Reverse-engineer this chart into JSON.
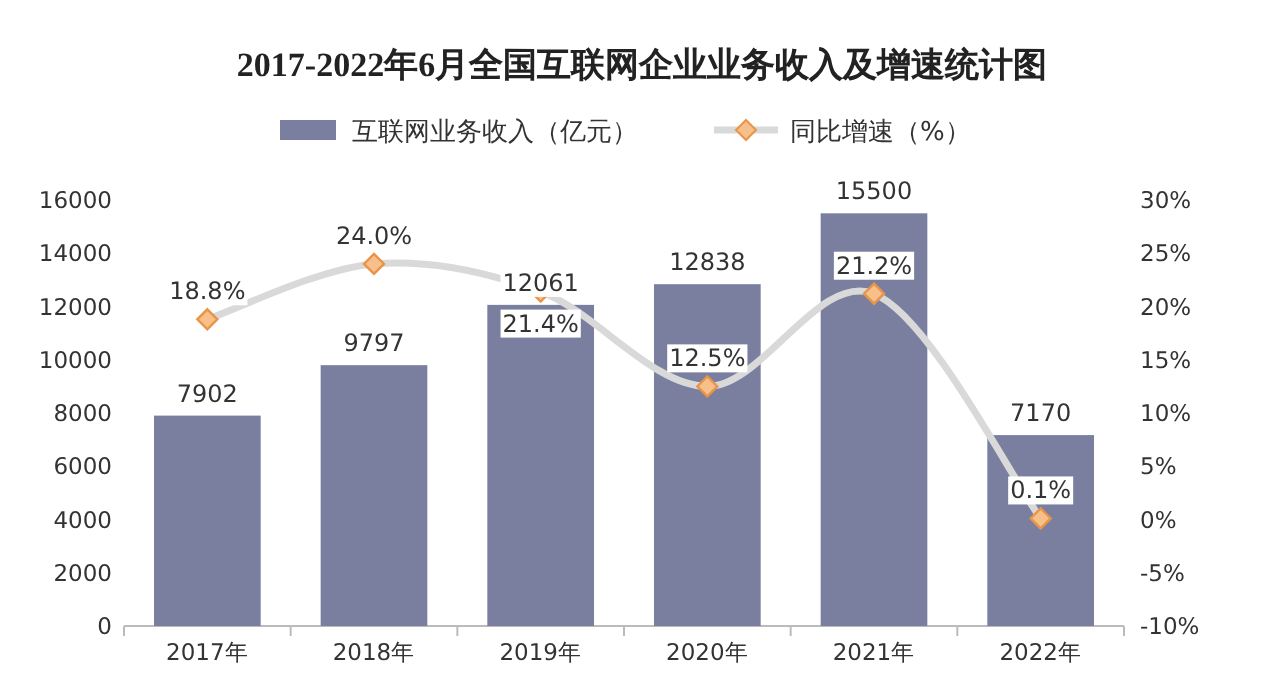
{
  "chart_data": {
    "type": "bar",
    "title": "2017-2022年6月全国互联网企业业务收入及增速统计图",
    "categories": [
      "2017年",
      "2018年",
      "2019年",
      "2020年",
      "2021年",
      "2022年"
    ],
    "series": [
      {
        "name": "互联网业务收入（亿元）",
        "color": "#7a7f9f",
        "values": [
          7902,
          9797,
          12061,
          12838,
          15500,
          7170
        ]
      },
      {
        "name": "同比增速（%）",
        "type": "line",
        "axis": "y2",
        "color": "#d9d9d9",
        "marker": "diamond",
        "values": [
          18.8,
          24.0,
          21.4,
          12.5,
          21.2,
          0.1
        ],
        "value_labels": [
          "18.8%",
          "24.0%",
          "21.4%",
          "12.5%",
          "21.2%",
          "0.1%"
        ]
      }
    ],
    "data_labels": true,
    "ylim": [
      0,
      16000
    ],
    "yticks": [
      0,
      2000,
      4000,
      6000,
      8000,
      10000,
      12000,
      14000,
      16000
    ],
    "y2lim": [
      -10,
      30
    ],
    "y2ticks": [
      {
        "value": -10,
        "label": "-10%"
      },
      {
        "value": -5,
        "label": "-5%"
      },
      {
        "value": 0,
        "label": "0%"
      },
      {
        "value": 5,
        "label": "5%"
      },
      {
        "value": 10,
        "label": "10%"
      },
      {
        "value": 15,
        "label": "15%"
      },
      {
        "value": 20,
        "label": "20%"
      },
      {
        "value": 25,
        "label": "25%"
      },
      {
        "value": 30,
        "label": "30%"
      }
    ],
    "grid": false,
    "legend": "top"
  }
}
